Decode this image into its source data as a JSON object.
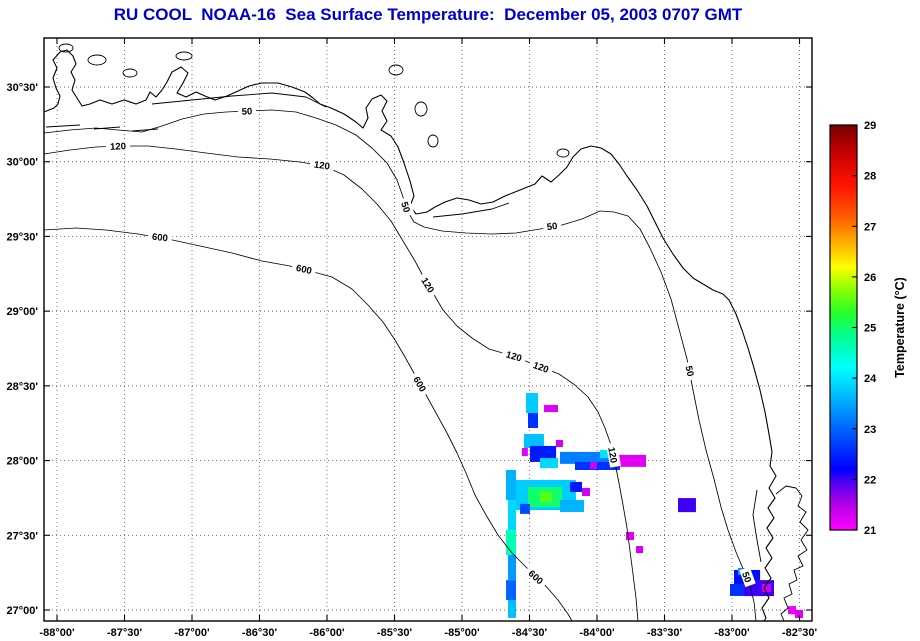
{
  "title": "RU COOL  NOAA-16  Sea Surface Temperature:  December 05, 2003 0707 GMT",
  "title_color": "#0000cd",
  "axes": {
    "x_tick_deg": [
      -88,
      -87.5,
      -87,
      -86.5,
      -86,
      -85.5,
      -85,
      -84.5,
      -84,
      -83.5,
      -83,
      -82.5
    ],
    "x_tick_labels": [
      "-88°00'",
      "-87°30'",
      "-87°00'",
      "-86°30'",
      "-86°00'",
      "-85°30'",
      "-85°00'",
      "-84°30'",
      "-84°00'",
      "-83°30'",
      "-83°00'",
      "-82°30'"
    ],
    "y_tick_deg": [
      30.5,
      30,
      29.5,
      29,
      28.5,
      28,
      27.5,
      27
    ],
    "y_tick_labels": [
      "30°30'",
      "30°00'",
      "29°30'",
      "29°00'",
      "28°30'",
      "28°00'",
      "27°30'",
      "27°00'"
    ]
  },
  "colorbar": {
    "label": "Temperature (°C)",
    "min": 21,
    "max": 29,
    "ticks": [
      21,
      22,
      23,
      24,
      25,
      26,
      27,
      28,
      29
    ],
    "stops": [
      [
        21.0,
        "#ff00ff"
      ],
      [
        21.5,
        "#b400e6"
      ],
      [
        21.9,
        "#5a00f0"
      ],
      [
        22.2,
        "#0000ff"
      ],
      [
        23.0,
        "#0064ff"
      ],
      [
        23.6,
        "#00b4ff"
      ],
      [
        24.2,
        "#00ffff"
      ],
      [
        24.8,
        "#00ff96"
      ],
      [
        25.3,
        "#28ff28"
      ],
      [
        25.8,
        "#96ff00"
      ],
      [
        26.2,
        "#ffff00"
      ],
      [
        26.7,
        "#ffaa00"
      ],
      [
        27.2,
        "#ff5a00"
      ],
      [
        27.8,
        "#ff1400"
      ],
      [
        28.4,
        "#cd0000"
      ],
      [
        29.0,
        "#780000"
      ]
    ]
  },
  "chart_data": {
    "type": "heatmap",
    "title": "RU COOL  NOAA-16  Sea Surface Temperature:  December 05, 2003 0707 GMT",
    "xlabel": "",
    "ylabel": "",
    "x_range_deg": [
      -88.1,
      -82.41
    ],
    "y_range_deg": [
      26.93,
      30.83
    ],
    "grid": true,
    "colorbar_label": "Temperature (°C)",
    "colorbar_range": [
      21,
      29
    ],
    "bathymetry_contour_levels_m": [
      50,
      120,
      600
    ],
    "contour_labels": [
      [
        50,
        247,
        111,
        -3
      ],
      [
        120,
        118,
        146,
        -3
      ],
      [
        600,
        160,
        237,
        6
      ],
      [
        120,
        322,
        165,
        8
      ],
      [
        600,
        304,
        269,
        12
      ],
      [
        50,
        406,
        207,
        72
      ],
      [
        120,
        428,
        285,
        58
      ],
      [
        600,
        420,
        384,
        60
      ],
      [
        50,
        552,
        226,
        -8
      ],
      [
        120,
        514,
        356,
        16
      ],
      [
        120,
        541,
        367,
        20
      ],
      [
        50,
        690,
        371,
        78
      ],
      [
        120,
        613,
        455,
        80
      ],
      [
        600,
        536,
        577,
        42
      ],
      [
        50,
        747,
        577,
        70
      ]
    ],
    "sst_cells_lon_lat_dlon_dlat_tempC": [
      [
        -84.526,
        28.452,
        0.089,
        0.134,
        23.8
      ],
      [
        -84.511,
        28.318,
        0.074,
        0.1,
        22.6
      ],
      [
        -84.393,
        28.372,
        0.104,
        0.047,
        21.2
      ],
      [
        -84.541,
        28.178,
        0.148,
        0.094,
        23.7
      ],
      [
        -84.496,
        28.098,
        0.193,
        0.107,
        22.4
      ],
      [
        -84.556,
        28.084,
        0.044,
        0.054,
        21.2
      ],
      [
        -84.304,
        28.138,
        0.052,
        0.047,
        21.3
      ],
      [
        -84.422,
        28.017,
        0.133,
        0.067,
        23.9
      ],
      [
        -84.274,
        28.058,
        0.37,
        0.08,
        23.2
      ],
      [
        -84.163,
        27.991,
        0.333,
        0.054,
        22.6
      ],
      [
        -83.844,
        28.038,
        0.207,
        0.08,
        21.2
      ],
      [
        -83.978,
        28.071,
        0.089,
        0.054,
        24.0
      ],
      [
        -84.052,
        27.991,
        0.052,
        0.047,
        21.3
      ],
      [
        -84.674,
        27.937,
        0.074,
        0.201,
        23.6
      ],
      [
        -84.659,
        27.736,
        0.059,
        0.201,
        23.9
      ],
      [
        -84.674,
        27.535,
        0.074,
        0.167,
        24.6
      ],
      [
        -84.659,
        27.368,
        0.059,
        0.167,
        23.4
      ],
      [
        -84.674,
        27.2,
        0.074,
        0.134,
        23.0
      ],
      [
        -84.659,
        27.067,
        0.059,
        0.12,
        23.7
      ],
      [
        -84.6,
        27.87,
        0.444,
        0.201,
        23.8
      ],
      [
        -84.511,
        27.823,
        0.252,
        0.134,
        25.0
      ],
      [
        -84.422,
        27.79,
        0.089,
        0.067,
        25.5
      ],
      [
        -84.2,
        27.857,
        0.089,
        0.067,
        22.4
      ],
      [
        -84.57,
        27.71,
        0.074,
        0.067,
        22.8
      ],
      [
        -84.111,
        27.817,
        0.059,
        0.054,
        21.3
      ],
      [
        -84.274,
        27.736,
        0.178,
        0.08,
        23.6
      ],
      [
        -83.785,
        27.522,
        0.059,
        0.054,
        21.2
      ],
      [
        -83.711,
        27.428,
        0.052,
        0.047,
        21.3
      ],
      [
        -83.4,
        27.749,
        0.133,
        0.094,
        22.0
      ],
      [
        -82.985,
        27.268,
        0.193,
        0.094,
        22.3
      ],
      [
        -82.911,
        27.2,
        0.222,
        0.107,
        22.0
      ],
      [
        -83.015,
        27.174,
        0.104,
        0.08,
        22.6
      ],
      [
        -82.778,
        27.174,
        0.067,
        0.054,
        21.3
      ],
      [
        -82.956,
        27.281,
        0.059,
        0.047,
        23.4
      ],
      [
        -82.585,
        27.026,
        0.059,
        0.054,
        21.1
      ],
      [
        -82.533,
        27.0,
        0.059,
        0.054,
        21.2
      ]
    ]
  }
}
